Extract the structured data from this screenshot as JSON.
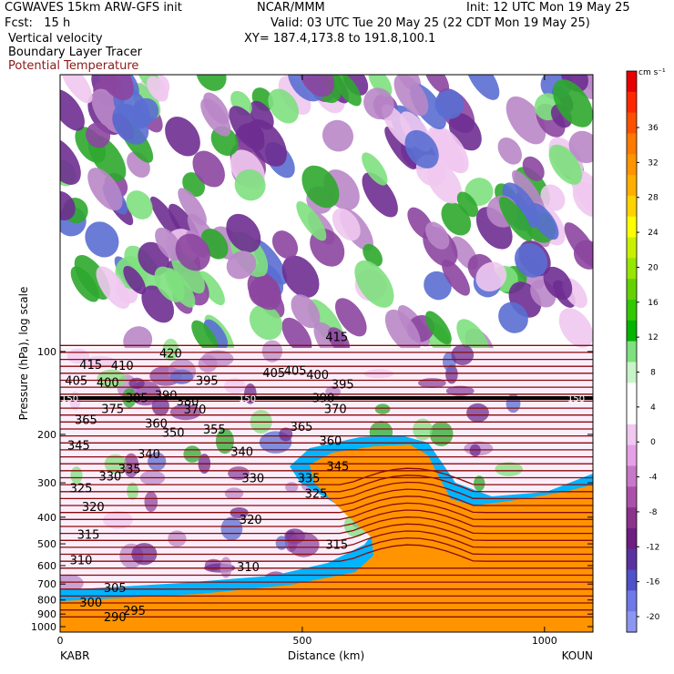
{
  "header": {
    "model": "CGWAVES 15km ARW-GFS init",
    "org": "NCAR/MMM",
    "init": "Init: 12 UTC Mon 19 May 25",
    "fcst": "Fcst:   15 h",
    "valid": "Valid: 03 UTC Tue 20 May 25 (22 CDT Mon 19 May 25)",
    "field1": "Vertical velocity",
    "field2": "Boundary Layer Tracer",
    "field3": "Potential Temperature",
    "xy": "XY= 187.4,173.8 to 191.8,100.1"
  },
  "colors": {
    "theta": "#8b0a0a",
    "field3_text": "#8b1a1a"
  },
  "chart_data": {
    "type": "heatmap",
    "title": "",
    "xlabel": "Distance (km)",
    "ylabel": "Pressure (hPa), log scale",
    "x_ticks": [
      0,
      500,
      1000
    ],
    "x_tick_labels": [
      "0",
      "500",
      "1000"
    ],
    "xlim": [
      0,
      1100
    ],
    "y_scale": "log",
    "y_ticks": [
      100,
      200,
      300,
      400,
      500,
      600,
      700,
      800,
      900,
      1000
    ],
    "y_tick_labels": [
      "100",
      "200",
      "300",
      "400",
      "500",
      "600",
      "700",
      "800",
      "900",
      "1000"
    ],
    "left_label": "KABR",
    "right_label": "KOUN",
    "tracer_marker": "150",
    "colorbar": {
      "unit_label": "cm s⁻¹",
      "levels": [
        36,
        32,
        28,
        24,
        20,
        16,
        12,
        8,
        4,
        0,
        -4,
        -8,
        -12,
        -16,
        -20
      ],
      "labels": [
        "36",
        "32",
        "28",
        "24",
        "20",
        "16",
        "12",
        "8",
        "4",
        "0",
        "-4",
        "-8",
        "-12",
        "-16",
        "-20"
      ],
      "colors": [
        "#e60000",
        "#ff2800",
        "#ff5000",
        "#ff7800",
        "#ff9400",
        "#ffae00",
        "#ffd200",
        "#ffff00",
        "#c8f000",
        "#96e600",
        "#64d200",
        "#32c800",
        "#00b400",
        "#7ee07e",
        "#c8f5c8",
        "#ffffff",
        "#ffffff",
        "#f0c8f0",
        "#e6a0e6",
        "#c878c8",
        "#aa50aa",
        "#8c328c",
        "#6e1e82",
        "#5a32a0",
        "#5050c8",
        "#6e78e6",
        "#8c96f0"
      ]
    },
    "theta_labels": [
      {
        "v": "415",
        "x": 40,
        "p": 112
      },
      {
        "v": "410",
        "x": 105,
        "p": 113
      },
      {
        "v": "420",
        "x": 205,
        "p": 102
      },
      {
        "v": "405",
        "x": 10,
        "p": 128
      },
      {
        "v": "400",
        "x": 75,
        "p": 130
      },
      {
        "v": "385",
        "x": 135,
        "p": 148
      },
      {
        "v": "390",
        "x": 195,
        "p": 145
      },
      {
        "v": "380",
        "x": 240,
        "p": 152
      },
      {
        "v": "395",
        "x": 280,
        "p": 128
      },
      {
        "v": "375",
        "x": 85,
        "p": 162
      },
      {
        "v": "370",
        "x": 255,
        "p": 163
      },
      {
        "v": "365",
        "x": 30,
        "p": 178
      },
      {
        "v": "360",
        "x": 175,
        "p": 183
      },
      {
        "v": "350",
        "x": 210,
        "p": 198
      },
      {
        "v": "355",
        "x": 295,
        "p": 193
      },
      {
        "v": "345",
        "x": 15,
        "p": 220
      },
      {
        "v": "340",
        "x": 160,
        "p": 237
      },
      {
        "v": "335",
        "x": 120,
        "p": 268
      },
      {
        "v": "330",
        "x": 80,
        "p": 285
      },
      {
        "v": "325",
        "x": 20,
        "p": 315
      },
      {
        "v": "320",
        "x": 45,
        "p": 368
      },
      {
        "v": "315",
        "x": 35,
        "p": 465
      },
      {
        "v": "310",
        "x": 20,
        "p": 575
      },
      {
        "v": "305",
        "x": 90,
        "p": 725
      },
      {
        "v": "300",
        "x": 40,
        "p": 820
      },
      {
        "v": "295",
        "x": 130,
        "p": 880
      },
      {
        "v": "290",
        "x": 90,
        "p": 925
      },
      {
        "v": "405",
        "x": 418,
        "p": 120
      },
      {
        "v": "405",
        "x": 462,
        "p": 118
      },
      {
        "v": "400",
        "x": 508,
        "p": 122
      },
      {
        "v": "415",
        "x": 548,
        "p": 89
      },
      {
        "v": "395",
        "x": 560,
        "p": 132
      },
      {
        "v": "390",
        "x": 520,
        "p": 148
      },
      {
        "v": "370",
        "x": 545,
        "p": 162
      },
      {
        "v": "365",
        "x": 475,
        "p": 188
      },
      {
        "v": "360",
        "x": 535,
        "p": 212
      },
      {
        "v": "345",
        "x": 550,
        "p": 262
      },
      {
        "v": "335",
        "x": 490,
        "p": 290
      },
      {
        "v": "325",
        "x": 505,
        "p": 330
      },
      {
        "v": "330",
        "x": 375,
        "p": 290
      },
      {
        "v": "320",
        "x": 370,
        "p": 410
      },
      {
        "v": "315",
        "x": 548,
        "p": 505
      },
      {
        "v": "310",
        "x": 365,
        "p": 610
      },
      {
        "v": "340",
        "x": 352,
        "p": 232
      }
    ]
  }
}
